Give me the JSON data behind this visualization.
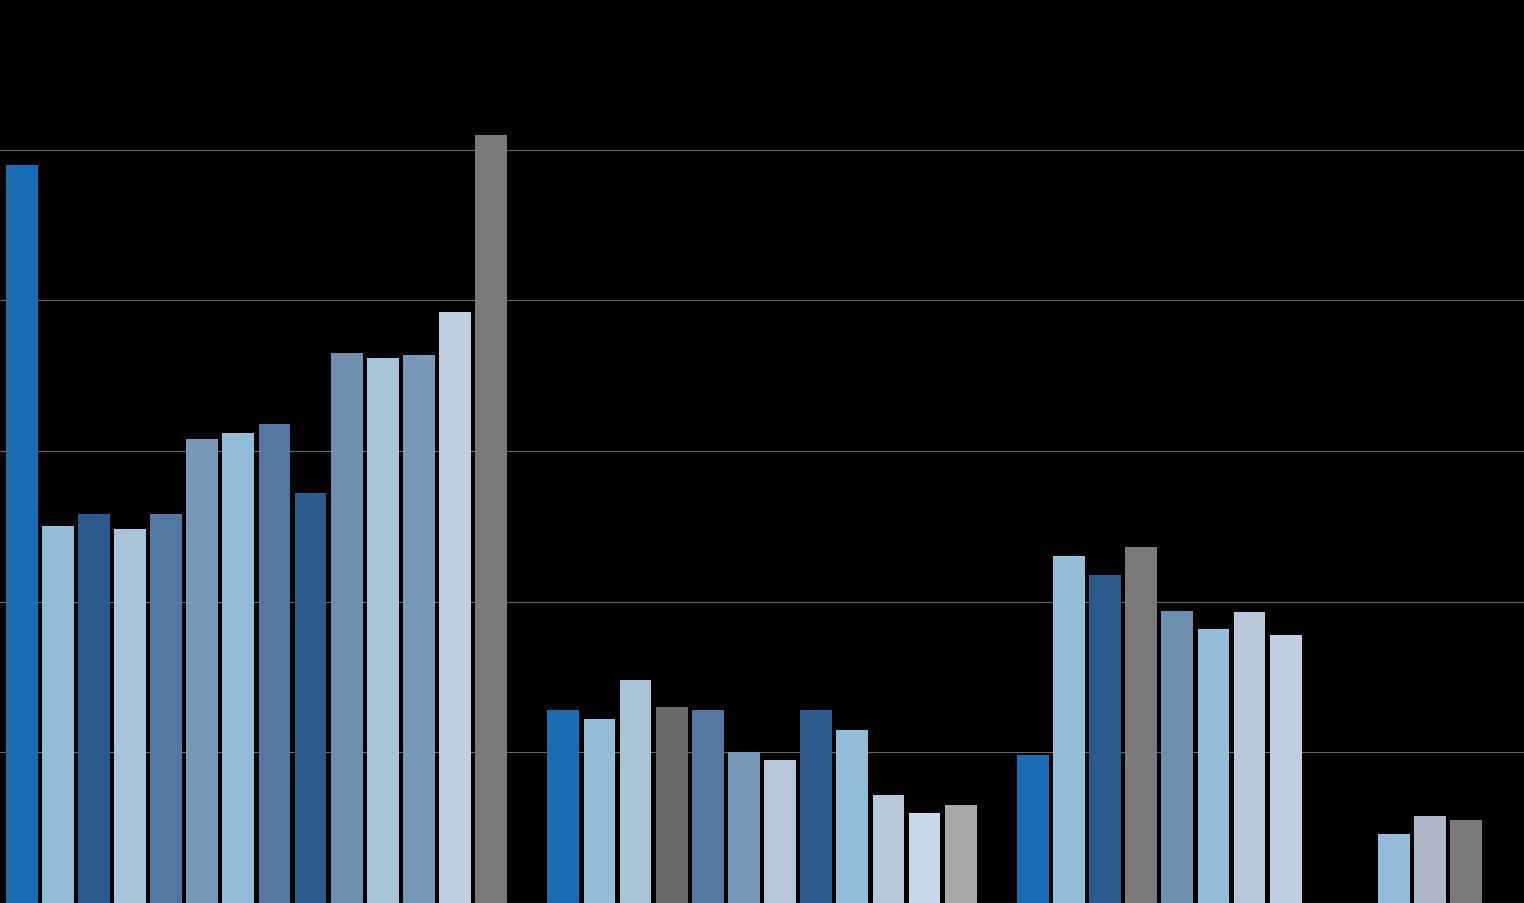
{
  "background_color": "#000000",
  "grid_color": "#666666",
  "ylim": [
    0,
    600
  ],
  "ytick_count": 7,
  "all_bars": [
    {
      "x": 0,
      "color": "#1A6DB5",
      "value": 490
    },
    {
      "x": 1,
      "color": "#93BDD8",
      "value": 250
    },
    {
      "x": 2,
      "color": "#2B5A8C",
      "value": 258
    },
    {
      "x": 3,
      "color": "#A8C4D8",
      "value": 248
    },
    {
      "x": 4,
      "color": "#5578A0",
      "value": 258
    },
    {
      "x": 5,
      "color": "#7899B8",
      "value": 308
    },
    {
      "x": 6,
      "color": "#93BDD8",
      "value": 312
    },
    {
      "x": 7,
      "color": "#5578A0",
      "value": 318
    },
    {
      "x": 8,
      "color": "#2B5A8C",
      "value": 272
    },
    {
      "x": 9,
      "color": "#6E90AE",
      "value": 365
    },
    {
      "x": 10,
      "color": "#A8C4D8",
      "value": 362
    },
    {
      "x": 11,
      "color": "#7899B8",
      "value": 364
    },
    {
      "x": 12,
      "color": "#C0D0E0",
      "value": 392
    },
    {
      "x": 13,
      "color": "#7A7A7A",
      "value": 510
    },
    {
      "x": 15,
      "color": "#1A6DB5",
      "value": 128
    },
    {
      "x": 16,
      "color": "#93BDD8",
      "value": 122
    },
    {
      "x": 17,
      "color": "#A8C4D8",
      "value": 148
    },
    {
      "x": 18,
      "color": "#6A6A6A",
      "value": 130
    },
    {
      "x": 19,
      "color": "#5578A0",
      "value": 128
    },
    {
      "x": 20,
      "color": "#7899B8",
      "value": 100
    },
    {
      "x": 21,
      "color": "#B8C8D8",
      "value": 95
    },
    {
      "x": 22,
      "color": "#2B5A8C",
      "value": 128
    },
    {
      "x": 23,
      "color": "#93BDD8",
      "value": 115
    },
    {
      "x": 24,
      "color": "#B8C8D8",
      "value": 72
    },
    {
      "x": 25,
      "color": "#C8D8E8",
      "value": 60
    },
    {
      "x": 26,
      "color": "#A8A8A8",
      "value": 65
    },
    {
      "x": 28,
      "color": "#1A6DB5",
      "value": 98
    },
    {
      "x": 29,
      "color": "#93BDD8",
      "value": 230
    },
    {
      "x": 30,
      "color": "#2B5A8C",
      "value": 218
    },
    {
      "x": 31,
      "color": "#7A7A7A",
      "value": 236
    },
    {
      "x": 32,
      "color": "#6E90AE",
      "value": 194
    },
    {
      "x": 33,
      "color": "#93BDD8",
      "value": 182
    },
    {
      "x": 34,
      "color": "#B8C8D8",
      "value": 193
    },
    {
      "x": 35,
      "color": "#C0D0E0",
      "value": 178
    },
    {
      "x": 38,
      "color": "#93BDD8",
      "value": 46
    },
    {
      "x": 39,
      "color": "#B0B8C8",
      "value": 58
    },
    {
      "x": 40,
      "color": "#7A7A7A",
      "value": 55
    }
  ]
}
